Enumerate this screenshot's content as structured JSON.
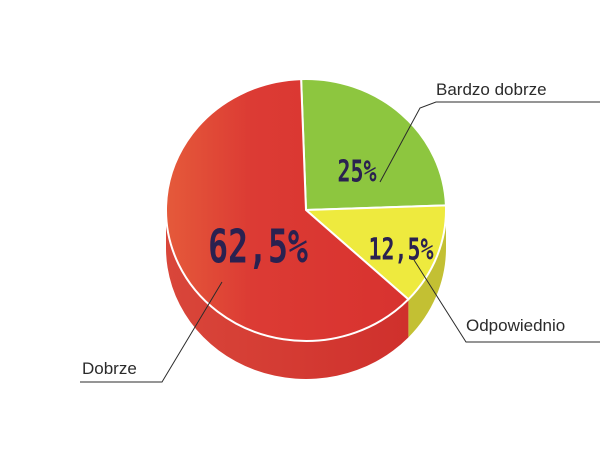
{
  "chart_data": {
    "type": "pie",
    "style": "3d",
    "title": "",
    "slices": [
      {
        "label": "Bardzo dobrze",
        "value": 25,
        "value_label": "25%",
        "color": "#8dc63f"
      },
      {
        "label": "Odpowiednio",
        "value": 12.5,
        "value_label": "12,5%",
        "color": "#eeea3e"
      },
      {
        "label": "Dobrze",
        "value": 62.5,
        "value_label": "62,5%",
        "color": "#de3a33"
      }
    ],
    "legend": "none"
  }
}
